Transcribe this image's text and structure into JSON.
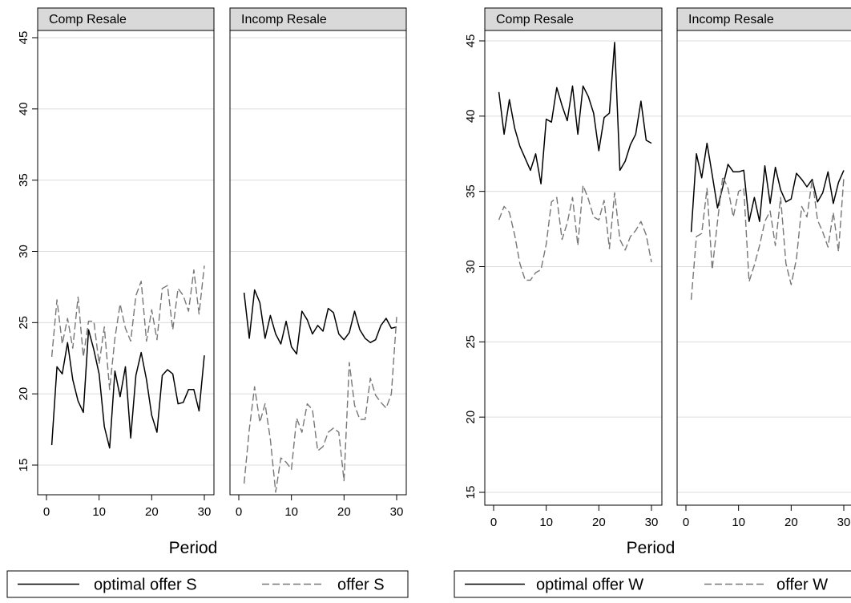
{
  "chart_data": [
    {
      "type": "line",
      "x_label": "Period",
      "y_range": [
        15,
        45
      ],
      "y_ticks": [
        15,
        20,
        25,
        30,
        35,
        40,
        45
      ],
      "x_range": [
        0,
        30
      ],
      "x_ticks": [
        0,
        10,
        20,
        30
      ],
      "grid": true,
      "legend_position": "bottom",
      "legend": [
        {
          "label": "optimal offer S",
          "style": "solid",
          "color": "#000000"
        },
        {
          "label": "offer S",
          "style": "dashed",
          "color": "#777777"
        }
      ],
      "panels": [
        {
          "title": "Comp Resale",
          "series": [
            {
              "legend_index": 0,
              "x": [
                1,
                2,
                3,
                4,
                5,
                6,
                7,
                8,
                9,
                10,
                11,
                12,
                13,
                14,
                15,
                16,
                17,
                18,
                19,
                20,
                21,
                22,
                23,
                24,
                25,
                26,
                27,
                28,
                29,
                30
              ],
              "y": [
                16.4,
                21.9,
                21.4,
                23.6,
                21.0,
                19.5,
                18.7,
                24.5,
                23.1,
                21.4,
                17.7,
                16.2,
                21.6,
                19.8,
                21.9,
                16.9,
                21.3,
                22.9,
                21.0,
                18.5,
                17.3,
                21.3,
                21.7,
                21.4,
                19.3,
                19.4,
                20.3,
                20.3,
                18.8,
                22.7
              ]
            },
            {
              "legend_index": 1,
              "x": [
                1,
                2,
                3,
                4,
                5,
                6,
                7,
                8,
                9,
                10,
                11,
                12,
                13,
                14,
                15,
                16,
                17,
                18,
                19,
                20,
                21,
                22,
                23,
                24,
                25,
                26,
                27,
                28,
                29,
                30
              ],
              "y": [
                22.6,
                26.6,
                23.5,
                25.3,
                23.2,
                26.8,
                22.6,
                25.1,
                25.1,
                22.1,
                24.7,
                20.3,
                23.9,
                26.3,
                24.6,
                23.7,
                26.9,
                27.9,
                23.7,
                25.9,
                23.8,
                27.4,
                27.6,
                24.5,
                27.4,
                26.9,
                25.8,
                28.7,
                25.6,
                29.0
              ]
            }
          ]
        },
        {
          "title": "Incomp Resale",
          "series": [
            {
              "legend_index": 0,
              "x": [
                1,
                2,
                3,
                4,
                5,
                6,
                7,
                8,
                9,
                10,
                11,
                12,
                13,
                14,
                15,
                16,
                17,
                18,
                19,
                20,
                21,
                22,
                23,
                24,
                25,
                26,
                27,
                28,
                29,
                30
              ],
              "y": [
                27.1,
                23.9,
                27.3,
                26.4,
                23.9,
                25.5,
                24.2,
                23.5,
                25.1,
                23.3,
                22.8,
                25.8,
                25.2,
                24.2,
                24.8,
                24.4,
                26.0,
                25.7,
                24.2,
                23.8,
                24.3,
                25.8,
                24.5,
                23.9,
                23.6,
                23.8,
                24.8,
                25.3,
                24.6,
                24.7
              ]
            },
            {
              "legend_index": 1,
              "x": [
                1,
                2,
                3,
                4,
                5,
                6,
                7,
                8,
                9,
                10,
                11,
                12,
                13,
                14,
                15,
                16,
                17,
                18,
                19,
                20,
                21,
                22,
                23,
                24,
                25,
                26,
                27,
                28,
                29,
                30
              ],
              "y": [
                13.7,
                17.5,
                20.5,
                18.0,
                19.3,
                16.8,
                13.1,
                15.5,
                15.2,
                14.7,
                18.3,
                17.3,
                19.3,
                18.9,
                16.0,
                16.3,
                17.3,
                17.6,
                17.3,
                13.9,
                22.2,
                19.2,
                18.2,
                18.2,
                21.1,
                19.9,
                19.4,
                19.0,
                20.0,
                25.4
              ]
            }
          ]
        }
      ]
    },
    {
      "type": "line",
      "x_label": "Period",
      "y_range": [
        15,
        45
      ],
      "y_ticks": [
        15,
        20,
        25,
        30,
        35,
        40,
        45
      ],
      "x_range": [
        0,
        30
      ],
      "x_ticks": [
        0,
        10,
        20,
        30
      ],
      "grid": true,
      "legend_position": "bottom",
      "legend": [
        {
          "label": "optimal offer W",
          "style": "solid",
          "color": "#000000"
        },
        {
          "label": "offer W",
          "style": "dashed",
          "color": "#777777"
        }
      ],
      "panels": [
        {
          "title": "Comp Resale",
          "series": [
            {
              "legend_index": 0,
              "x": [
                1,
                2,
                3,
                4,
                5,
                6,
                7,
                8,
                9,
                10,
                11,
                12,
                13,
                14,
                15,
                16,
                17,
                18,
                19,
                20,
                21,
                22,
                23,
                24,
                25,
                26,
                27,
                28,
                29,
                30
              ],
              "y": [
                41.6,
                38.8,
                41.1,
                39.2,
                38.0,
                37.2,
                36.4,
                37.5,
                35.5,
                39.8,
                39.6,
                41.9,
                40.7,
                39.7,
                42.0,
                38.8,
                42.0,
                41.3,
                40.2,
                37.7,
                39.9,
                40.2,
                44.9,
                36.4,
                37.0,
                38.1,
                38.8,
                41.0,
                38.4,
                38.2
              ]
            },
            {
              "legend_index": 1,
              "x": [
                1,
                2,
                3,
                4,
                5,
                6,
                7,
                8,
                9,
                10,
                11,
                12,
                13,
                14,
                15,
                16,
                17,
                18,
                19,
                20,
                21,
                22,
                23,
                24,
                25,
                26,
                27,
                28,
                29,
                30
              ],
              "y": [
                33.1,
                34.0,
                33.6,
                32.1,
                30.2,
                29.1,
                29.1,
                29.6,
                29.8,
                31.5,
                34.3,
                34.6,
                31.8,
                32.9,
                34.6,
                31.4,
                35.4,
                34.5,
                33.3,
                33.1,
                34.4,
                31.2,
                34.9,
                31.8,
                31.1,
                32.0,
                32.4,
                33.0,
                32.1,
                30.3
              ]
            }
          ]
        },
        {
          "title": "Incomp Resale",
          "series": [
            {
              "legend_index": 0,
              "x": [
                1,
                2,
                3,
                4,
                5,
                6,
                7,
                8,
                9,
                10,
                11,
                12,
                13,
                14,
                15,
                16,
                17,
                18,
                19,
                20,
                21,
                22,
                23,
                24,
                25,
                26,
                27,
                28,
                29,
                30
              ],
              "y": [
                32.3,
                37.5,
                35.9,
                38.2,
                36.1,
                33.9,
                35.3,
                36.8,
                36.3,
                36.3,
                36.4,
                33.0,
                34.6,
                33.0,
                36.7,
                34.2,
                36.6,
                35.1,
                34.3,
                34.5,
                36.2,
                35.8,
                35.3,
                35.8,
                34.3,
                34.9,
                36.3,
                34.2,
                35.6,
                36.4
              ]
            },
            {
              "legend_index": 1,
              "x": [
                1,
                2,
                3,
                4,
                5,
                6,
                7,
                8,
                9,
                10,
                11,
                12,
                13,
                14,
                15,
                16,
                17,
                18,
                19,
                20,
                21,
                22,
                23,
                24,
                25,
                26,
                27,
                28,
                29,
                30
              ],
              "y": [
                27.8,
                32.0,
                32.2,
                35.2,
                29.8,
                33.0,
                36.0,
                35.2,
                33.3,
                35.0,
                35.2,
                29.0,
                30.1,
                31.4,
                33.0,
                33.7,
                31.4,
                34.6,
                30.2,
                28.8,
                30.5,
                34.0,
                33.3,
                35.8,
                33.1,
                32.3,
                31.3,
                33.6,
                31.0,
                35.9
              ]
            }
          ]
        }
      ]
    }
  ]
}
